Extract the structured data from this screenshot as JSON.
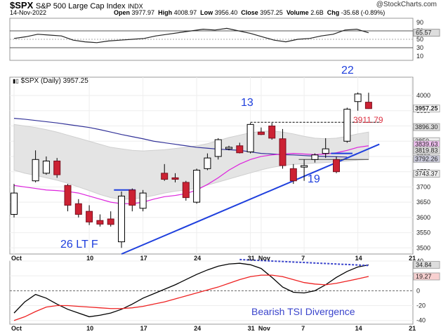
{
  "header": {
    "symbol": "$SPX",
    "name": "S&P 500 Large Cap Index",
    "exchange": "INDX",
    "date": "14-Nov-2022",
    "open_label": "Open",
    "open": "3977.97",
    "high_label": "High",
    "high": "4008.97",
    "low_label": "Low",
    "low": "3956.40",
    "close_label": "Close",
    "close": "3957.25",
    "volume_label": "Volume",
    "volume": "2.6B",
    "chg_label": "Chg",
    "chg": "-35.68 (-0.89%)",
    "source": "@StockCharts.com"
  },
  "colors": {
    "up_candle": "#ffffff",
    "down_candle": "#cc2233",
    "trendline": "#1e3fdd",
    "annotation_blue": "#1e3fdd",
    "annotation_red": "#dd3344",
    "ma_short": "#dd22dd",
    "ma_long": "#333399",
    "tsi_line": "#000000",
    "tsi_signal": "#ee2222"
  },
  "chart_data": [
    {
      "type": "line",
      "panel": "RSI (top indicator)",
      "ylim": [
        0,
        100
      ],
      "y_ticks": [
        90,
        70,
        50,
        30,
        10
      ],
      "levels": [
        70,
        30
      ],
      "last_value_label": "65.57",
      "values": [
        52,
        56,
        62,
        60,
        58,
        48,
        44,
        42,
        46,
        48,
        50,
        52,
        58,
        62,
        66,
        70,
        74,
        72,
        76,
        70,
        64,
        56,
        48,
        44,
        50,
        52,
        58,
        62,
        72,
        74,
        65.57
      ]
    },
    {
      "type": "candlestick",
      "panel": "price",
      "legend_label": "$SPX (Daily) 3957.25",
      "ylim": [
        3480,
        4060
      ],
      "y_ticks": [
        3500,
        3550,
        3600,
        3650,
        3700,
        3750,
        3800,
        3850,
        3900,
        3950,
        4000
      ],
      "x_labels": [
        {
          "day": 0,
          "label": "Oct"
        },
        {
          "day": 7,
          "label": "10"
        },
        {
          "day": 12,
          "label": "17"
        },
        {
          "day": 17,
          "label": "24"
        },
        {
          "day": 22,
          "label": "31"
        },
        {
          "day": 23,
          "label": "Nov"
        },
        {
          "day": 27,
          "label": "7"
        },
        {
          "day": 32,
          "label": "14"
        },
        {
          "day": 37,
          "label": "21"
        }
      ],
      "price_labels": [
        "3957.25",
        "3896.30",
        "3850",
        "3839.63",
        "3819.83",
        "3792.26",
        "3743.37"
      ],
      "candles": [
        {
          "d": 0,
          "o": 3610,
          "h": 3710,
          "l": 3600,
          "c": 3680
        },
        {
          "d": 2,
          "o": 3720,
          "h": 3820,
          "l": 3715,
          "c": 3790
        },
        {
          "d": 3,
          "o": 3745,
          "h": 3800,
          "l": 3740,
          "c": 3785
        },
        {
          "d": 4,
          "o": 3785,
          "h": 3795,
          "l": 3730,
          "c": 3740
        },
        {
          "d": 5,
          "o": 3705,
          "h": 3710,
          "l": 3620,
          "c": 3640
        },
        {
          "d": 6,
          "o": 3645,
          "h": 3660,
          "l": 3600,
          "c": 3610
        },
        {
          "d": 7,
          "o": 3620,
          "h": 3640,
          "l": 3575,
          "c": 3585
        },
        {
          "d": 8,
          "o": 3590,
          "h": 3610,
          "l": 3570,
          "c": 3578
        },
        {
          "d": 9,
          "o": 3595,
          "h": 3620,
          "l": 3570,
          "c": 3577
        },
        {
          "d": 10,
          "o": 3520,
          "h": 3685,
          "l": 3500,
          "c": 3670
        },
        {
          "d": 11,
          "o": 3690,
          "h": 3695,
          "l": 3620,
          "c": 3640
        },
        {
          "d": 12,
          "o": 3630,
          "h": 3690,
          "l": 3620,
          "c": 3680
        },
        {
          "d": 14,
          "o": 3745,
          "h": 3775,
          "l": 3720,
          "c": 3725
        },
        {
          "d": 15,
          "o": 3730,
          "h": 3745,
          "l": 3715,
          "c": 3725
        },
        {
          "d": 16,
          "o": 3715,
          "h": 3720,
          "l": 3655,
          "c": 3665
        },
        {
          "d": 17,
          "o": 3650,
          "h": 3760,
          "l": 3645,
          "c": 3755
        },
        {
          "d": 18,
          "o": 3760,
          "h": 3810,
          "l": 3755,
          "c": 3795
        },
        {
          "d": 19,
          "o": 3800,
          "h": 3860,
          "l": 3790,
          "c": 3855
        },
        {
          "d": 20,
          "o": 3825,
          "h": 3835,
          "l": 3820,
          "c": 3830
        },
        {
          "d": 21,
          "o": 3835,
          "h": 3845,
          "l": 3810,
          "c": 3812
        },
        {
          "d": 22,
          "o": 3815,
          "h": 3910,
          "l": 3810,
          "c": 3905
        },
        {
          "d": 23,
          "o": 3880,
          "h": 3895,
          "l": 3870,
          "c": 3872
        },
        {
          "d": 24,
          "o": 3900,
          "h": 3910,
          "l": 3855,
          "c": 3860
        },
        {
          "d": 25,
          "o": 3858,
          "h": 3890,
          "l": 3760,
          "c": 3770
        },
        {
          "d": 26,
          "o": 3760,
          "h": 3775,
          "l": 3710,
          "c": 3720
        },
        {
          "d": 27,
          "o": 3765,
          "h": 3790,
          "l": 3720,
          "c": 3770
        },
        {
          "d": 28,
          "o": 3790,
          "h": 3810,
          "l": 3780,
          "c": 3805
        },
        {
          "d": 29,
          "o": 3810,
          "h": 3860,
          "l": 3795,
          "c": 3825
        },
        {
          "d": 30,
          "o": 3790,
          "h": 3800,
          "l": 3745,
          "c": 3750
        },
        {
          "d": 31,
          "o": 3850,
          "h": 3960,
          "l": 3845,
          "c": 3955
        },
        {
          "d": 32,
          "o": 3980,
          "h": 4010,
          "l": 3950,
          "c": 4005
        },
        {
          "d": 33,
          "o": 3978,
          "h": 4009,
          "l": 3956,
          "c": 3957
        }
      ],
      "ma_short_label": "MA (magenta)",
      "ma_short": [
        3705,
        3700,
        3695,
        3690,
        3688,
        3685,
        3680,
        3670,
        3660,
        3650,
        3645,
        3645,
        3650,
        3660,
        3668,
        3672,
        3678,
        3690,
        3708,
        3730,
        3755,
        3775,
        3790,
        3800,
        3805,
        3808,
        3810,
        3808,
        3806,
        3808,
        3812,
        3820,
        3830,
        3835
      ],
      "ma_long_label": "MA (navy)",
      "ma_long": [
        3925,
        3922,
        3918,
        3914,
        3910,
        3905,
        3900,
        3895,
        3888,
        3880,
        3872,
        3865,
        3858,
        3850,
        3845,
        3840,
        3835,
        3830,
        3827,
        3824,
        3822,
        3820,
        3815,
        3810,
        3808,
        3806,
        3805,
        3803,
        3801,
        3800,
        3799,
        3798
      ],
      "band_upper": [
        3905,
        3900,
        3895,
        3888,
        3880,
        3870,
        3860,
        3850,
        3840,
        3830,
        3825,
        3820,
        3818,
        3820,
        3822,
        3826,
        3830,
        3835,
        3842,
        3852,
        3862,
        3870,
        3878,
        3882,
        3884,
        3880,
        3874,
        3866,
        3860,
        3858,
        3860,
        3866,
        3874,
        3880
      ],
      "band_lower": [
        3755,
        3745,
        3738,
        3730,
        3722,
        3712,
        3700,
        3688,
        3675,
        3665,
        3660,
        3660,
        3665,
        3672,
        3680,
        3686,
        3690,
        3696,
        3706,
        3716,
        3726,
        3736,
        3746,
        3756,
        3764,
        3770,
        3774,
        3776,
        3778,
        3780,
        3782,
        3785,
        3788,
        3790
      ],
      "trendline": {
        "from": {
          "d": 10,
          "price": 3480
        },
        "to": {
          "d": 34,
          "price": 3840
        }
      },
      "resistance_level": {
        "price": 3912,
        "from_day": 22,
        "to_day": 34
      },
      "annotations": {
        "low_label": "26 LT F",
        "label_13": "13",
        "label_22": "22",
        "label_19": "19",
        "level_label": "3911.79"
      }
    },
    {
      "type": "line",
      "panel": "TSI (bottom indicator)",
      "ylim": [
        -45,
        40
      ],
      "y_ticks": [
        40,
        20,
        0,
        -20,
        -40
      ],
      "series": [
        {
          "name": "",
          "values": [
            -30,
            -15,
            -5,
            -10,
            -18,
            -25,
            -30,
            -35,
            -33,
            -30,
            -25,
            -18,
            -10,
            -4,
            2,
            8,
            15,
            22,
            28,
            33,
            36,
            37,
            35,
            30,
            18,
            5,
            -2,
            -3,
            0,
            8,
            18,
            26,
            32,
            34.84
          ]
        },
        {
          "name": "",
          "values": [
            -40,
            -35,
            -28,
            -22,
            -20,
            -20,
            -21,
            -22,
            -23,
            -24,
            -24,
            -23,
            -21,
            -18,
            -15,
            -11,
            -7,
            -3,
            1,
            5,
            10,
            15,
            19,
            21,
            21,
            19,
            15,
            11,
            9,
            8,
            10,
            13,
            16,
            19.27
          ]
        }
      ],
      "last_value_labels": [
        "34.84",
        "19.27"
      ],
      "divergence_line": {
        "from": {
          "d": 21,
          "value": 42
        },
        "to": {
          "d": 33,
          "value": 34
        }
      },
      "annotation": "Bearish TSI Divergence"
    }
  ]
}
